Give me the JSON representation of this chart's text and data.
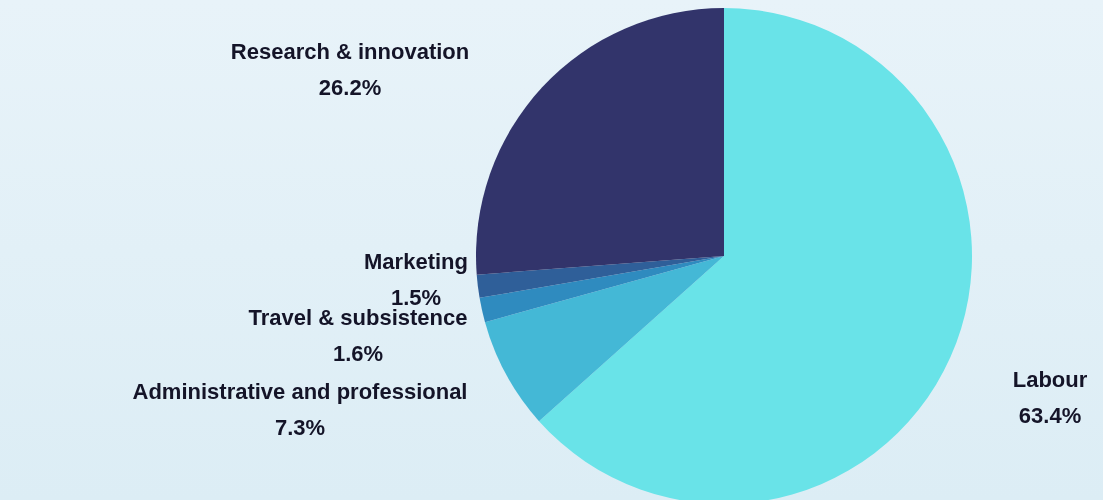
{
  "chart_data": {
    "type": "pie",
    "categories": [
      "Labour",
      "Administrative and professional",
      "Travel & subsistence",
      "Marketing",
      "Research & innovation"
    ],
    "values": [
      63.4,
      7.3,
      1.6,
      1.5,
      26.2
    ],
    "colors": [
      "#69e3e8",
      "#44b8d6",
      "#2f8bbf",
      "#2f5f99",
      "#32346b"
    ],
    "value_labels": [
      "63.4%",
      "7.3%",
      "1.6%",
      "1.5%",
      "26.2%"
    ]
  }
}
